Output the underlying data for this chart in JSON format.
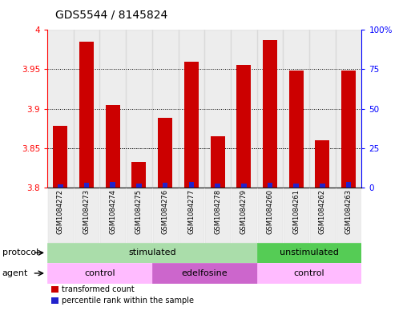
{
  "title": "GDS5544 / 8145824",
  "samples": [
    "GSM1084272",
    "GSM1084273",
    "GSM1084274",
    "GSM1084275",
    "GSM1084276",
    "GSM1084277",
    "GSM1084278",
    "GSM1084279",
    "GSM1084260",
    "GSM1084261",
    "GSM1084262",
    "GSM1084263"
  ],
  "transformed_counts": [
    3.878,
    3.985,
    3.905,
    3.832,
    3.888,
    3.96,
    3.865,
    3.956,
    3.987,
    3.948,
    3.86,
    3.948
  ],
  "percentile_ranks": [
    2.0,
    3.0,
    3.5,
    2.5,
    3.0,
    3.5,
    2.5,
    2.5,
    3.0,
    2.5,
    2.5,
    3.5
  ],
  "ylim_left": [
    3.8,
    4.0
  ],
  "ylim_right": [
    0,
    100
  ],
  "yticks_left": [
    3.8,
    3.85,
    3.9,
    3.95,
    4.0
  ],
  "yticks_right": [
    0,
    25,
    50,
    75,
    100
  ],
  "ytick_labels_left": [
    "3.8",
    "3.85",
    "3.9",
    "3.95",
    "4"
  ],
  "ytick_labels_right": [
    "0",
    "25",
    "50",
    "75",
    "100%"
  ],
  "bar_color_red": "#cc0000",
  "bar_color_blue": "#2222cc",
  "bar_width": 0.55,
  "blue_bar_width": 0.2,
  "protocol_labels": [
    {
      "text": "stimulated",
      "start": 0,
      "end": 7,
      "color": "#aaddaa"
    },
    {
      "text": "unstimulated",
      "start": 8,
      "end": 11,
      "color": "#55cc55"
    }
  ],
  "agent_labels": [
    {
      "text": "control",
      "start": 0,
      "end": 3,
      "color": "#ffbbff"
    },
    {
      "text": "edelfosine",
      "start": 4,
      "end": 7,
      "color": "#cc66cc"
    },
    {
      "text": "control",
      "start": 8,
      "end": 11,
      "color": "#ffbbff"
    }
  ],
  "protocol_row_label": "protocol",
  "agent_row_label": "agent",
  "legend_items": [
    {
      "label": "transformed count",
      "color": "#cc0000"
    },
    {
      "label": "percentile rank within the sample",
      "color": "#2222cc"
    }
  ],
  "col_bg_color": "#cccccc",
  "title_fontsize": 10,
  "tick_fontsize": 7.5,
  "label_fontsize": 8,
  "sample_fontsize": 6
}
